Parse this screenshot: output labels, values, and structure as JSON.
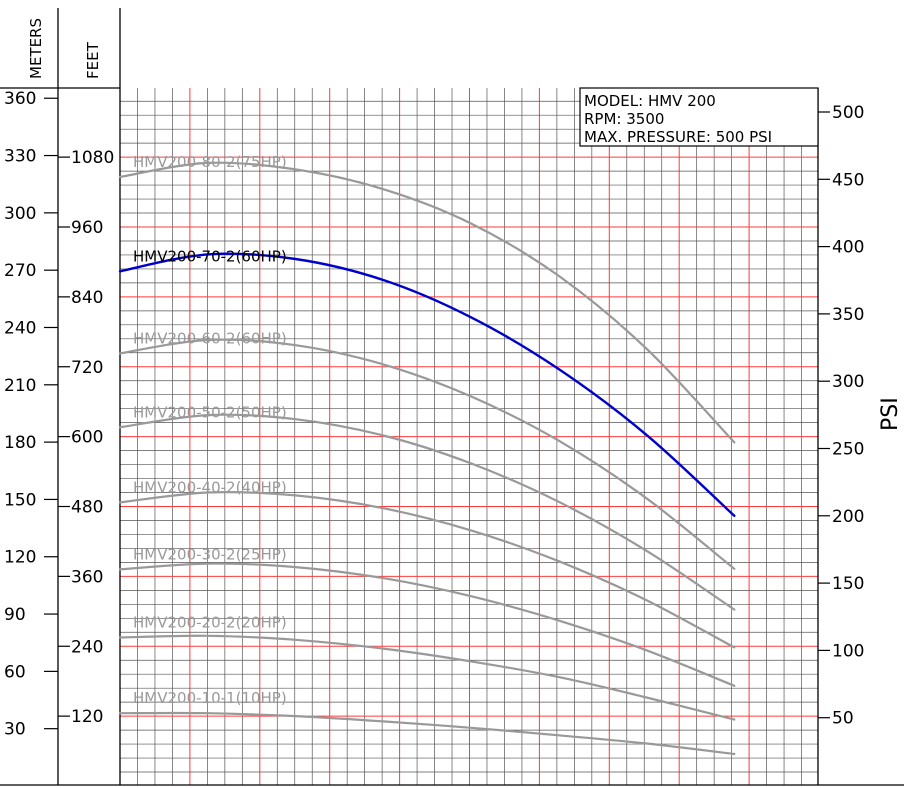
{
  "chart_data": {
    "type": "line",
    "info_box": {
      "model": "MODEL: HMV 200",
      "rpm": "RPM: 3500",
      "pressure": "MAX. PRESSURE: 500 PSI"
    },
    "axes": {
      "meters": {
        "label": "METERS",
        "ticks": [
          "30",
          "60",
          "90",
          "120",
          "150",
          "180",
          "210",
          "240",
          "270",
          "300",
          "330",
          "360"
        ]
      },
      "feet": {
        "label": "FEET",
        "ticks": [
          "120",
          "240",
          "360",
          "480",
          "600",
          "720",
          "840",
          "960",
          "1080"
        ]
      },
      "psi": {
        "label": "PSI",
        "ticks": [
          "50",
          "100",
          "150",
          "200",
          "250",
          "300",
          "350",
          "400",
          "450",
          "500"
        ]
      }
    },
    "grid": {
      "major_color": "#ff3b3b",
      "minor_color": "#555555"
    },
    "series": [
      {
        "name": "HMV200-80-2(75HP)",
        "color": "#999999",
        "highlight": false,
        "points": [
          [
            0,
            1046
          ],
          [
            1,
            1070
          ],
          [
            2,
            1059
          ],
          [
            3,
            1025
          ],
          [
            4,
            966
          ],
          [
            5,
            876
          ],
          [
            6,
            751
          ],
          [
            7,
            590
          ]
        ]
      },
      {
        "name": "HMV200-70-2(60HP)",
        "color": "#0000cc",
        "highlight": true,
        "points": [
          [
            0,
            884
          ],
          [
            1,
            913
          ],
          [
            2,
            905
          ],
          [
            3,
            869
          ],
          [
            4,
            805
          ],
          [
            5,
            716
          ],
          [
            6,
            603
          ],
          [
            7,
            464
          ]
        ]
      },
      {
        "name": "HMV200-60-2(60HP)",
        "color": "#999999",
        "highlight": false,
        "points": [
          [
            0,
            743
          ],
          [
            1,
            766
          ],
          [
            2,
            757
          ],
          [
            3,
            724
          ],
          [
            4,
            669
          ],
          [
            5,
            593
          ],
          [
            6,
            494
          ],
          [
            7,
            373
          ]
        ]
      },
      {
        "name": "HMV200-50-2(50HP)",
        "color": "#999999",
        "highlight": false,
        "points": [
          [
            0,
            616
          ],
          [
            1,
            637
          ],
          [
            2,
            630
          ],
          [
            3,
            602
          ],
          [
            4,
            554
          ],
          [
            5,
            488
          ],
          [
            6,
            404
          ],
          [
            7,
            303
          ]
        ]
      },
      {
        "name": "HMV200-40-2(40HP)",
        "color": "#999999",
        "highlight": false,
        "points": [
          [
            0,
            487
          ],
          [
            1,
            504
          ],
          [
            2,
            499
          ],
          [
            3,
            477
          ],
          [
            4,
            439
          ],
          [
            5,
            386
          ],
          [
            6,
            319
          ],
          [
            7,
            238
          ]
        ]
      },
      {
        "name": "HMV200-30-2(25HP)",
        "color": "#999999",
        "highlight": false,
        "points": [
          [
            0,
            372
          ],
          [
            1,
            382
          ],
          [
            2,
            376
          ],
          [
            3,
            357
          ],
          [
            4,
            326
          ],
          [
            5,
            284
          ],
          [
            6,
            233
          ],
          [
            7,
            172
          ]
        ]
      },
      {
        "name": "HMV200-20-2(20HP)",
        "color": "#999999",
        "highlight": false,
        "points": [
          [
            0,
            255
          ],
          [
            1,
            258
          ],
          [
            2,
            251
          ],
          [
            3,
            236
          ],
          [
            4,
            214
          ],
          [
            5,
            187
          ],
          [
            6,
            152
          ],
          [
            7,
            114
          ]
        ]
      },
      {
        "name": "HMV200-10-1(10HP)",
        "color": "#999999",
        "highlight": false,
        "points": [
          [
            0,
            125
          ],
          [
            1,
            125
          ],
          [
            2,
            120
          ],
          [
            3,
            111
          ],
          [
            4,
            100
          ],
          [
            5,
            87
          ],
          [
            6,
            73
          ],
          [
            7,
            55
          ]
        ]
      }
    ]
  }
}
